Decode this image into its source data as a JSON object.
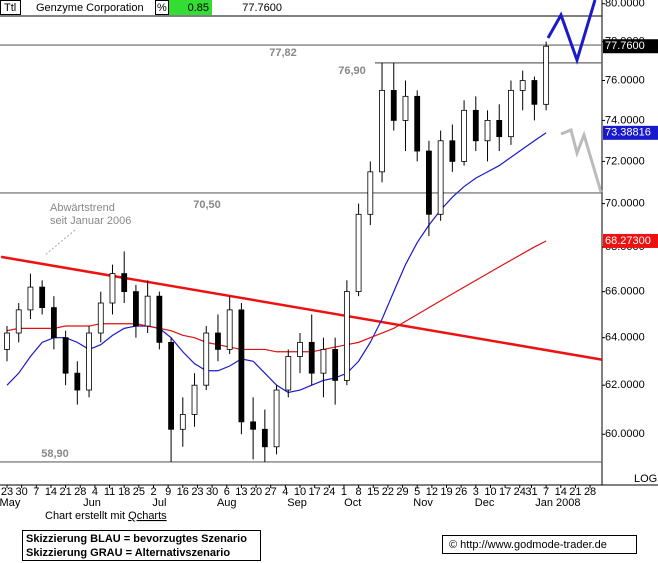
{
  "header": {
    "symbol": "Ttl",
    "name": "Genzyme Corporation",
    "pct_sign": "%",
    "change": "0.85",
    "last": "77.7600"
  },
  "chart_data": {
    "type": "candlestick",
    "x": [
      0,
      4,
      8,
      12,
      16,
      20,
      24,
      28,
      32,
      36,
      40,
      44,
      48,
      52,
      56,
      60,
      64,
      68,
      72,
      76,
      80,
      84,
      88,
      92,
      96,
      100,
      104,
      108,
      112,
      116,
      120,
      124,
      128,
      132,
      136,
      140,
      144,
      148,
      152,
      156,
      160,
      164,
      168,
      172,
      176,
      180,
      184
    ],
    "open": [
      63.5,
      64.2,
      65.2,
      66.2,
      65.3,
      64,
      62.5,
      61.8,
      64.2,
      65.5,
      66.8,
      66,
      64.5,
      65.8,
      63.8,
      60.2,
      60.8,
      62,
      64.2,
      63.5,
      65.2,
      60.5,
      60.2,
      59.5,
      61.8,
      63.2,
      63.8,
      62.5,
      63.5,
      62.2,
      66,
      69.5,
      71.5,
      75.5,
      74,
      75.2,
      72.5,
      69.5,
      73,
      72,
      74.5,
      73,
      74,
      73.2,
      75.5,
      76,
      74.8
    ],
    "high": [
      64.5,
      65.5,
      66.8,
      66.5,
      65.8,
      64.3,
      63,
      64.5,
      66,
      67.2,
      67.8,
      66.3,
      66.5,
      66,
      64,
      61.5,
      62.5,
      64.5,
      65,
      65.8,
      65.5,
      61.5,
      61,
      62,
      63.5,
      64.2,
      65,
      64,
      64,
      66.5,
      70,
      72,
      76.9,
      76.9,
      76,
      75.5,
      73,
      73.5,
      73.8,
      75,
      75.2,
      74.5,
      74.8,
      76,
      76.5,
      76.2,
      78
    ],
    "low": [
      63,
      63.8,
      64.8,
      65,
      63.5,
      62,
      61.2,
      61.5,
      63.8,
      65,
      65.5,
      64,
      64.2,
      63.5,
      58.9,
      59.5,
      60.3,
      61.8,
      63,
      63.3,
      60,
      59,
      58.9,
      59.2,
      61.5,
      62.5,
      62,
      61.5,
      61.2,
      62,
      65.8,
      69,
      71,
      73.5,
      72.5,
      72,
      68.5,
      69.2,
      71.5,
      71.8,
      72.5,
      72,
      72.5,
      72.8,
      74.5,
      74,
      74.5
    ],
    "close": [
      64.2,
      65.2,
      66.2,
      65.3,
      64,
      62.5,
      61.8,
      64.2,
      65.5,
      66.8,
      66,
      64.5,
      65.8,
      63.8,
      60.2,
      60.8,
      62,
      64.2,
      63.5,
      65.2,
      60.5,
      60.2,
      59.5,
      61.8,
      63.2,
      63.8,
      62.5,
      63.5,
      62.2,
      66,
      69.5,
      71.5,
      75.5,
      74,
      75.2,
      72.5,
      69.5,
      73,
      72,
      74.5,
      73,
      74,
      73.2,
      75.5,
      76,
      74.8,
      77.76
    ],
    "series": [
      {
        "color": "#1a1acc",
        "values": [
          62.0,
          62.5,
          63.2,
          63.8,
          64.0,
          64.0,
          63.8,
          63.5,
          63.7,
          64.1,
          64.4,
          64.5,
          64.5,
          64.4,
          64.0,
          63.4,
          62.9,
          62.6,
          62.6,
          62.8,
          63.1,
          63.0,
          62.5,
          62.0,
          61.7,
          61.8,
          62.0,
          62.2,
          62.3,
          62.5,
          63.0,
          63.8,
          64.8,
          66.0,
          67.2,
          68.2,
          69.0,
          69.7,
          70.3,
          70.8,
          71.2,
          71.5,
          71.8,
          72.2,
          72.6,
          73.0,
          73.39
        ]
      },
      {
        "color": "#dd1111",
        "values": [
          64.3,
          64.4,
          64.4,
          64.4,
          64.4,
          64.5,
          64.5,
          64.5,
          64.6,
          64.6,
          64.6,
          64.6,
          64.5,
          64.4,
          64.3,
          64.1,
          64.0,
          63.8,
          63.7,
          63.6,
          63.5,
          63.5,
          63.5,
          63.4,
          63.4,
          63.4,
          63.4,
          63.5,
          63.6,
          63.7,
          63.8,
          64.0,
          64.2,
          64.4,
          64.7,
          65.0,
          65.3,
          65.6,
          65.9,
          66.2,
          66.5,
          66.8,
          67.1,
          67.4,
          67.7,
          68.0,
          68.27
        ]
      }
    ],
    "trendline": {
      "x": [
        -2,
        203
      ],
      "values": [
        67.55,
        63.07
      ],
      "color": "#ee1111"
    },
    "levels": [
      {
        "value": 77.82,
        "label": "77,82"
      },
      {
        "value": 76.9,
        "label": "76,90"
      },
      {
        "value": 70.5,
        "label": "70,50"
      },
      {
        "value": 58.9,
        "label": "58,90"
      }
    ],
    "price_tags": [
      {
        "value": 77.76,
        "label": "77.7600",
        "color": "#000000"
      },
      {
        "value": 73.38816,
        "label": "73.38816",
        "color": "#1a1acc"
      },
      {
        "value": 68.273,
        "label": "68.27300",
        "color": "#ee1111"
      }
    ],
    "ylim": [
      58,
      80.2
    ],
    "log_scale": true,
    "log_label": "LOG",
    "yticks": [
      {
        "value": 60,
        "label": "60.0000"
      },
      {
        "value": 62,
        "label": "62.0000"
      },
      {
        "value": 64,
        "label": "64.0000"
      },
      {
        "value": 66,
        "label": "66.0000"
      },
      {
        "value": 68,
        "label": "68.0000"
      },
      {
        "value": 70,
        "label": "70.0000"
      },
      {
        "value": 72,
        "label": "72.0000"
      },
      {
        "value": 74,
        "label": "74.0000"
      },
      {
        "value": 76,
        "label": "76.0000"
      },
      {
        "value": 78,
        "label": "78.0000"
      },
      {
        "value": 80,
        "label": "80.0000"
      }
    ],
    "xticks": [
      {
        "value": 0,
        "label": "23"
      },
      {
        "value": 5,
        "label": "30"
      },
      {
        "value": 10,
        "label": "7"
      },
      {
        "value": 15,
        "label": "14"
      },
      {
        "value": 20,
        "label": "21"
      },
      {
        "value": 25,
        "label": "28"
      },
      {
        "value": 30,
        "label": "4"
      },
      {
        "value": 35,
        "label": "11"
      },
      {
        "value": 40,
        "label": "18"
      },
      {
        "value": 45,
        "label": "25"
      },
      {
        "value": 50,
        "label": "2"
      },
      {
        "value": 55,
        "label": "9"
      },
      {
        "value": 60,
        "label": "16"
      },
      {
        "value": 65,
        "label": "23"
      },
      {
        "value": 70,
        "label": "30"
      },
      {
        "value": 75,
        "label": "6"
      },
      {
        "value": 80,
        "label": "13"
      },
      {
        "value": 85,
        "label": "20"
      },
      {
        "value": 90,
        "label": "27"
      },
      {
        "value": 95,
        "label": "4"
      },
      {
        "value": 100,
        "label": "10"
      },
      {
        "value": 105,
        "label": "17"
      },
      {
        "value": 110,
        "label": "24"
      },
      {
        "value": 115,
        "label": "1"
      },
      {
        "value": 120,
        "label": "8"
      },
      {
        "value": 125,
        "label": "15"
      },
      {
        "value": 130,
        "label": "22"
      },
      {
        "value": 135,
        "label": "29"
      },
      {
        "value": 140,
        "label": "5"
      },
      {
        "value": 145,
        "label": "12"
      },
      {
        "value": 150,
        "label": "19"
      },
      {
        "value": 155,
        "label": "26"
      },
      {
        "value": 160,
        "label": "3"
      },
      {
        "value": 165,
        "label": "10"
      },
      {
        "value": 170,
        "label": "17"
      },
      {
        "value": 175,
        "label": "24"
      },
      {
        "value": 179,
        "label": "31"
      },
      {
        "value": 184,
        "label": "7"
      },
      {
        "value": 189,
        "label": "14"
      },
      {
        "value": 194,
        "label": "21"
      },
      {
        "value": 199,
        "label": "28"
      }
    ],
    "months": [
      {
        "value": 1,
        "label": "May"
      },
      {
        "value": 29,
        "label": "Jun"
      },
      {
        "value": 52,
        "label": "Jul"
      },
      {
        "value": 75,
        "label": "Aug"
      },
      {
        "value": 99,
        "label": "Sep"
      },
      {
        "value": 118,
        "label": "Oct"
      },
      {
        "value": 142,
        "label": "Nov"
      },
      {
        "value": 163,
        "label": "Dec"
      },
      {
        "value": 188,
        "label": "Jan 2008"
      }
    ],
    "annotation": [
      "Abwärtstrend",
      "seit Januar 2006"
    ]
  },
  "footer": {
    "credit_prefix": "Chart erstellt mit ",
    "credit_link": "Qcharts",
    "legend": [
      "Skizzierung BLAU = bevorzugtes Szenario",
      "Skizzierung GRAU = Alternativszenario"
    ],
    "source": "© http://www.godmode-trader.de"
  }
}
